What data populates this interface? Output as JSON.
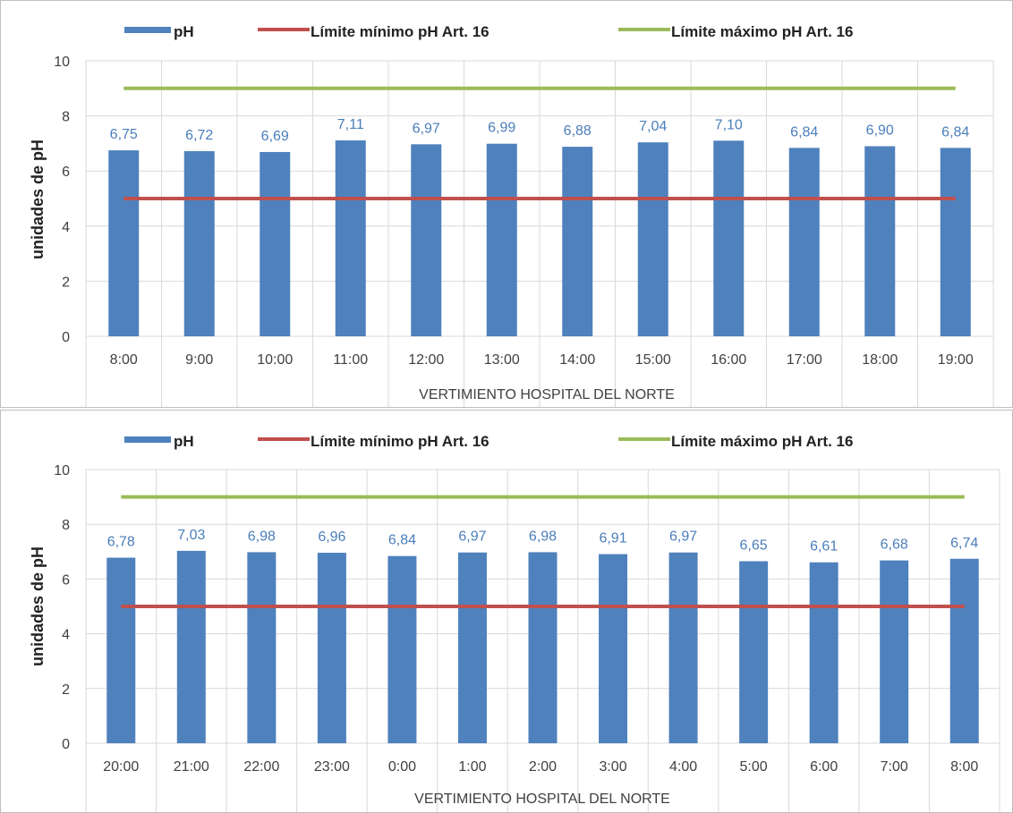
{
  "chart_data": [
    {
      "type": "bar",
      "xlabel": "VERTIMIENTO HOSPITAL DEL NORTE",
      "ylabel": "unidades de pH",
      "ylim": [
        0,
        10
      ],
      "yticks": [
        "0",
        "2",
        "4",
        "6",
        "8",
        "10"
      ],
      "grid": true,
      "legend_position": "top",
      "categories": [
        "8:00",
        "9:00",
        "10:00",
        "11:00",
        "12:00",
        "13:00",
        "14:00",
        "15:00",
        "16:00",
        "17:00",
        "18:00",
        "19:00"
      ],
      "series": [
        {
          "name": "pH",
          "type": "bar",
          "color": "#4f81bd",
          "values": [
            6.75,
            6.72,
            6.69,
            7.11,
            6.97,
            6.99,
            6.88,
            7.04,
            7.1,
            6.84,
            6.9,
            6.84
          ],
          "labels": [
            "6,75",
            "6,72",
            "6,69",
            "7,11",
            "6,97",
            "6,99",
            "6,88",
            "7,04",
            "7,10",
            "6,84",
            "6,90",
            "6,84"
          ]
        },
        {
          "name": "Límite mínimo pH Art. 16",
          "type": "line",
          "color": "#c0504d",
          "value": 5
        },
        {
          "name": "Límite máximo pH Art. 16",
          "type": "line",
          "color": "#9bbb59",
          "value": 9
        }
      ]
    },
    {
      "type": "bar",
      "xlabel": "VERTIMIENTO HOSPITAL DEL NORTE",
      "ylabel": "unidades de pH",
      "ylim": [
        0,
        10
      ],
      "yticks": [
        "0",
        "2",
        "4",
        "6",
        "8",
        "10"
      ],
      "grid": true,
      "legend_position": "top",
      "categories": [
        "20:00",
        "21:00",
        "22:00",
        "23:00",
        "0:00",
        "1:00",
        "2:00",
        "3:00",
        "4:00",
        "5:00",
        "6:00",
        "7:00",
        "8:00"
      ],
      "series": [
        {
          "name": "pH",
          "type": "bar",
          "color": "#4f81bd",
          "values": [
            6.78,
            7.03,
            6.98,
            6.96,
            6.84,
            6.97,
            6.98,
            6.91,
            6.97,
            6.65,
            6.61,
            6.68,
            6.74
          ],
          "labels": [
            "6,78",
            "7,03",
            "6,98",
            "6,96",
            "6,84",
            "6,97",
            "6,98",
            "6,91",
            "6,97",
            "6,65",
            "6,61",
            "6,68",
            "6,74"
          ]
        },
        {
          "name": "Límite mínimo pH Art. 16",
          "type": "line",
          "color": "#c0504d",
          "value": 5
        },
        {
          "name": "Límite máximo pH Art. 16",
          "type": "line",
          "color": "#9bbb59",
          "value": 9
        }
      ]
    }
  ]
}
